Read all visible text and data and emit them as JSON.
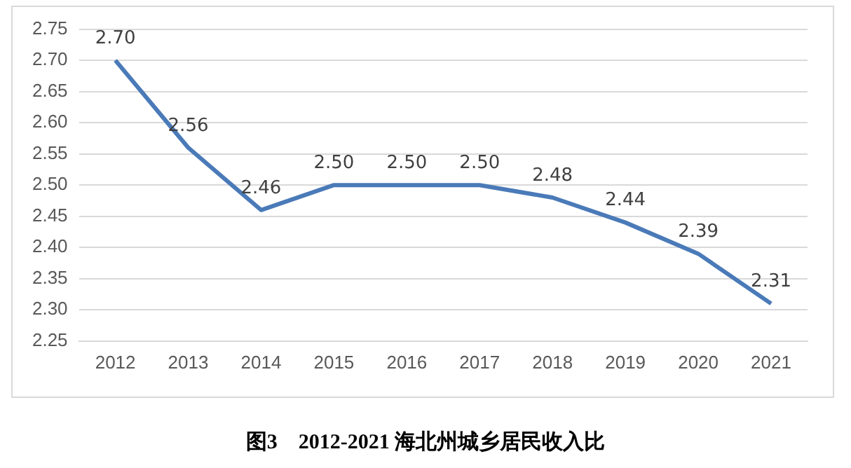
{
  "chart_data": {
    "type": "line",
    "title": "图3    2012-2021 海北州城乡居民收入比",
    "categories": [
      "2012",
      "2013",
      "2014",
      "2015",
      "2016",
      "2017",
      "2018",
      "2019",
      "2020",
      "2021"
    ],
    "series": [
      {
        "color": "#4a7ab8",
        "values": [
          2.7,
          2.56,
          2.46,
          2.5,
          2.5,
          2.5,
          2.48,
          2.44,
          2.39,
          2.31
        ],
        "value_labels": [
          "2.70",
          "2.56",
          "2.46",
          "2.50",
          "2.50",
          "2.50",
          "2.48",
          "2.44",
          "2.39",
          "2.31"
        ]
      }
    ],
    "ylim": [
      2.25,
      2.75
    ],
    "yticks": [
      2.25,
      {
        "value": 2.3,
        "label": "2.30"
      },
      2.35,
      {
        "value": 2.4,
        "label": "2.40"
      },
      2.45,
      {
        "value": 2.5,
        "label": "2.50"
      },
      2.55,
      {
        "value": 2.6,
        "label": "2.60"
      },
      2.65,
      {
        "value": 2.7,
        "label": "2.70"
      },
      2.75
    ],
    "grid": "y",
    "legend": false,
    "marker": "none",
    "line_style": "solid"
  }
}
